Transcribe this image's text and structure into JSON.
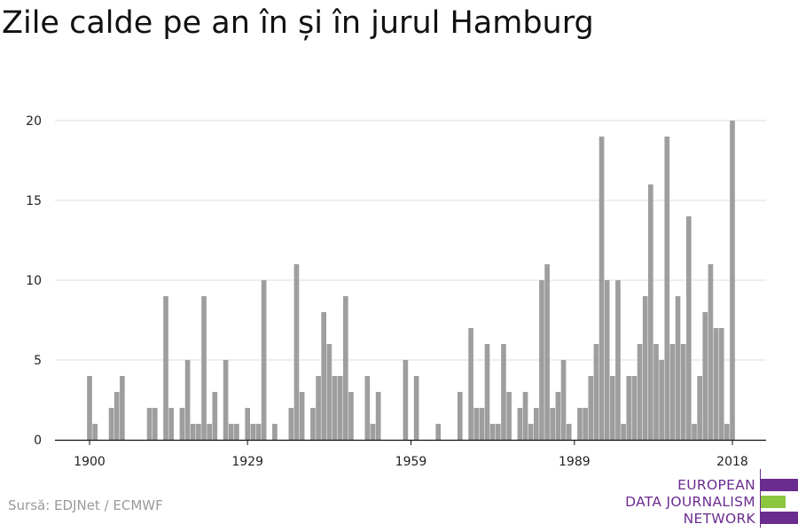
{
  "title": "Zile calde pe an în și în jurul Hamburg",
  "source": "Sursă: EDJNet / ECMWF",
  "logo": {
    "line1": "EUROPEAN",
    "line2": "DATA JOURNALISM",
    "line3": "NETWORK",
    "colors": {
      "purple": "#6b2c8f",
      "green": "#8cc63f"
    }
  },
  "chart_data": {
    "type": "bar",
    "title": "Zile calde pe an în și în jurul Hamburg",
    "xlabel": "",
    "ylabel": "",
    "ylim": [
      0,
      20
    ],
    "y_ticks": [
      0,
      5,
      10,
      15,
      20
    ],
    "x_ticks": [
      1900,
      1929,
      1959,
      1989,
      2018
    ],
    "bar_color": "#9e9e9e",
    "grid": true,
    "x": [
      1900,
      1901,
      1902,
      1903,
      1904,
      1905,
      1906,
      1907,
      1908,
      1909,
      1910,
      1911,
      1912,
      1913,
      1914,
      1915,
      1916,
      1917,
      1918,
      1919,
      1920,
      1921,
      1922,
      1923,
      1924,
      1925,
      1926,
      1927,
      1928,
      1929,
      1930,
      1931,
      1932,
      1933,
      1934,
      1935,
      1936,
      1937,
      1938,
      1939,
      1940,
      1941,
      1942,
      1943,
      1944,
      1945,
      1946,
      1947,
      1948,
      1949,
      1950,
      1951,
      1952,
      1953,
      1954,
      1955,
      1956,
      1957,
      1958,
      1959,
      1960,
      1961,
      1962,
      1963,
      1964,
      1965,
      1966,
      1967,
      1968,
      1969,
      1970,
      1971,
      1972,
      1973,
      1974,
      1975,
      1976,
      1977,
      1978,
      1979,
      1980,
      1981,
      1982,
      1983,
      1984,
      1985,
      1986,
      1987,
      1988,
      1989,
      1990,
      1991,
      1992,
      1993,
      1994,
      1995,
      1996,
      1997,
      1998,
      1999,
      2000,
      2001,
      2002,
      2003,
      2004,
      2005,
      2006,
      2007,
      2008,
      2009,
      2010,
      2011,
      2012,
      2013,
      2014,
      2015,
      2016,
      2017,
      2018
    ],
    "values": [
      4,
      1,
      0,
      0,
      2,
      3,
      4,
      0,
      0,
      0,
      0,
      2,
      2,
      0,
      9,
      2,
      0,
      2,
      5,
      1,
      1,
      9,
      1,
      3,
      0,
      5,
      1,
      1,
      0,
      2,
      1,
      1,
      10,
      0,
      1,
      0,
      0,
      2,
      11,
      3,
      0,
      2,
      4,
      8,
      6,
      4,
      4,
      9,
      3,
      0,
      0,
      4,
      1,
      3,
      0,
      0,
      0,
      0,
      5,
      0,
      4,
      0,
      0,
      0,
      1,
      0,
      0,
      0,
      3,
      0,
      7,
      2,
      2,
      6,
      1,
      1,
      6,
      3,
      0,
      2,
      3,
      1,
      2,
      10,
      11,
      2,
      3,
      5,
      1,
      0,
      2,
      2,
      4,
      6,
      19,
      10,
      4,
      10,
      1,
      4,
      4,
      6,
      9,
      16,
      6,
      5,
      19,
      6,
      9,
      6,
      14,
      1,
      4,
      8,
      11,
      7,
      7,
      1,
      20
    ]
  }
}
